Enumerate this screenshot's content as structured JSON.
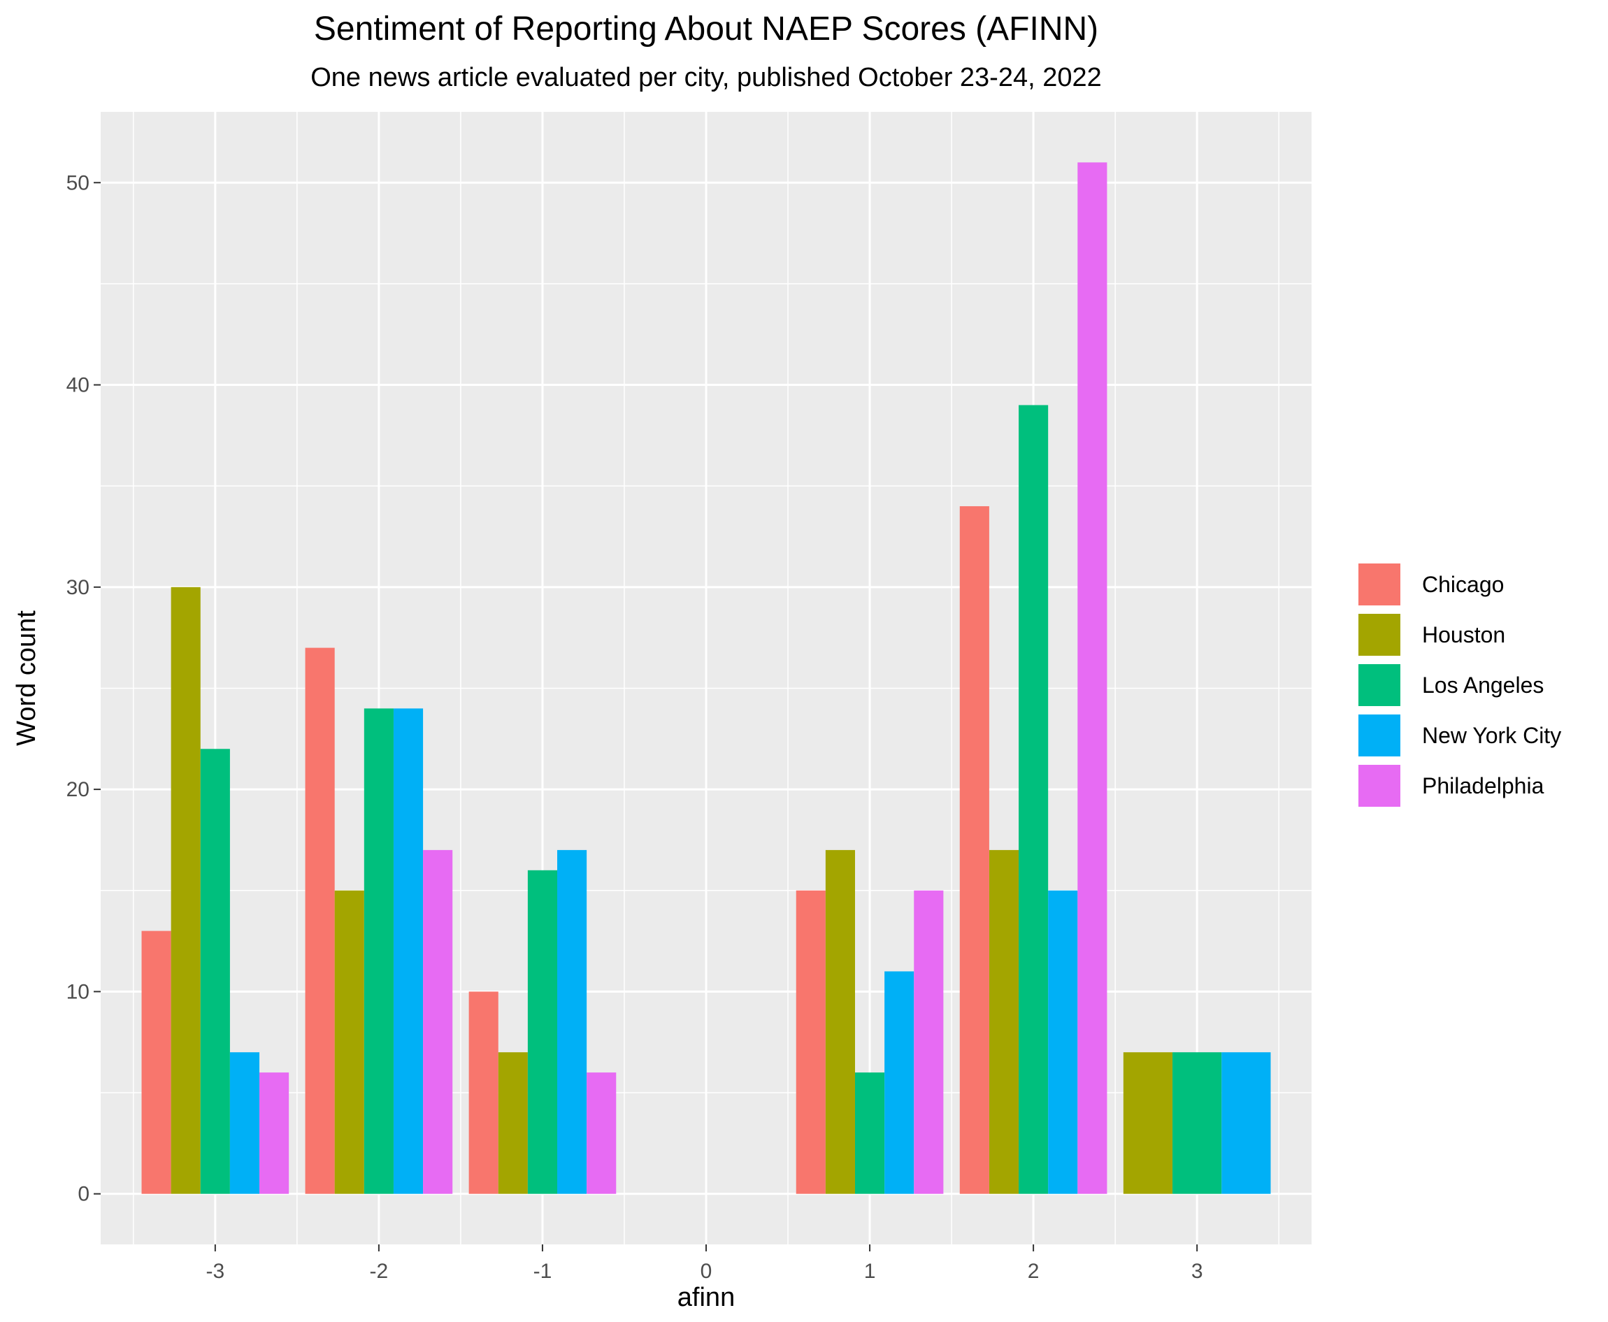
{
  "chart_data": {
    "type": "bar",
    "title": "Sentiment of Reporting About NAEP Scores (AFINN)",
    "subtitle": "One news article evaluated per city, published October 23-24, 2022",
    "xlabel": "afinn",
    "ylabel": "Word count",
    "x_ticks": [
      "-3",
      "-2",
      "-1",
      "0",
      "1",
      "2",
      "3"
    ],
    "y_ticks": [
      "0",
      "10",
      "20",
      "30",
      "40",
      "50"
    ],
    "ylim": [
      -2.5,
      53.5
    ],
    "xlim": [
      -3.5,
      3.5
    ],
    "grid": true,
    "legend_position": "right",
    "series": [
      {
        "name": "Chicago",
        "color": "#F8766D",
        "points": [
          [
            -3,
            13
          ],
          [
            -2,
            27
          ],
          [
            -1,
            10
          ],
          [
            1,
            15
          ],
          [
            2,
            34
          ]
        ]
      },
      {
        "name": "Houston",
        "color": "#A3A500",
        "points": [
          [
            -3,
            30
          ],
          [
            -2,
            15
          ],
          [
            -1,
            7
          ],
          [
            1,
            17
          ],
          [
            2,
            17
          ],
          [
            3,
            7
          ]
        ]
      },
      {
        "name": "Los Angeles",
        "color": "#00BF7D",
        "points": [
          [
            -3,
            22
          ],
          [
            -2,
            24
          ],
          [
            -1,
            16
          ],
          [
            1,
            6
          ],
          [
            2,
            39
          ],
          [
            3,
            7
          ]
        ]
      },
      {
        "name": "New York City",
        "color": "#00B0F6",
        "points": [
          [
            -3,
            7
          ],
          [
            -2,
            24
          ],
          [
            -1,
            17
          ],
          [
            1,
            11
          ],
          [
            2,
            15
          ],
          [
            3,
            7
          ]
        ]
      },
      {
        "name": "Philadelphia",
        "color": "#E76BF3",
        "points": [
          [
            -3,
            6
          ],
          [
            -2,
            17
          ],
          [
            -1,
            6
          ],
          [
            1,
            15
          ],
          [
            2,
            51
          ]
        ]
      }
    ]
  }
}
